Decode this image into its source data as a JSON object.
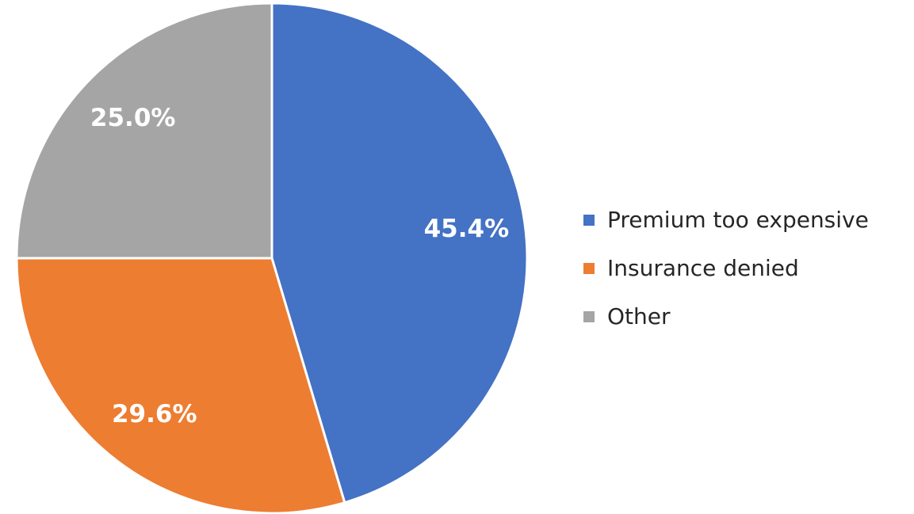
{
  "chart_data": {
    "type": "pie",
    "categories": [
      "Premium too expensive",
      "Insurance denied",
      "Other"
    ],
    "values": [
      45.4,
      29.6,
      25.0
    ],
    "value_labels": [
      "45.4%",
      "29.6%",
      "25.0%"
    ],
    "colors": [
      "#4472c4",
      "#ed7d31",
      "#a5a5a5"
    ],
    "legend": "right"
  }
}
